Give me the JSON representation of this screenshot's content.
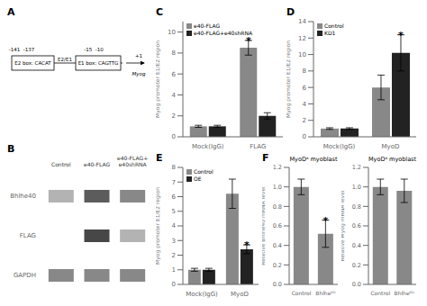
{
  "chart_data": [
    {
      "type": "diagram",
      "annotations": [
        "A",
        "-141  -137",
        "-15  -10",
        "+1",
        "E2 box: CACAT",
        "E1 box: CAGTTG",
        "E2/E1",
        "Myog"
      ]
    },
    {
      "type": "heatmap",
      "annotations": [
        "B"
      ],
      "categories": [
        "Control",
        "e40-FLAG",
        "e40-FLAG+\ne40shRNA"
      ],
      "row_labels": [
        "Bhlhe40",
        "FLAG",
        "GAPDH"
      ],
      "cells": [
        [
          0.35,
          0.75,
          0.55
        ],
        [
          0.0,
          0.85,
          0.35
        ],
        [
          0.55,
          0.55,
          0.55
        ]
      ]
    },
    {
      "type": "bar",
      "annotations": [
        {
          "text": "C"
        },
        {
          "text": "*",
          "category": "FLAG",
          "series": "e40-FLAG"
        }
      ],
      "categories": [
        "Mock(IgG)",
        "FLAG"
      ],
      "series": [
        {
          "name": "e40-FLAG",
          "color": "#888888",
          "values": [
            1.0,
            8.5
          ],
          "errors": [
            0.1,
            0.7
          ]
        },
        {
          "name": "e40-FLAG+e40shRNA",
          "color": "#222222",
          "values": [
            1.0,
            2.0
          ],
          "errors": [
            0.1,
            0.3
          ]
        }
      ],
      "ylabel": "Myog promoter E1/E2 region",
      "ylim": [
        0,
        11
      ],
      "yticks": [
        0,
        2,
        4,
        6,
        8,
        10
      ],
      "legend": "upper left"
    },
    {
      "type": "bar",
      "annotations": [
        {
          "text": "D"
        },
        {
          "text": "*",
          "category": "MyoD",
          "series": "KD1"
        }
      ],
      "categories": [
        "Mock(IgG)",
        "MyoD"
      ],
      "series": [
        {
          "name": "Control",
          "color": "#888888",
          "values": [
            1.0,
            6.0
          ],
          "errors": [
            0.1,
            1.5
          ]
        },
        {
          "name": "KD1",
          "color": "#222222",
          "values": [
            1.0,
            10.2
          ],
          "errors": [
            0.1,
            2.2
          ]
        }
      ],
      "ylabel": "Myog promoter E1/E2 region",
      "ylim": [
        0,
        14
      ],
      "yticks": [
        0,
        2,
        4,
        6,
        8,
        10,
        12,
        14
      ],
      "legend": "upper left"
    },
    {
      "type": "bar",
      "annotations": [
        {
          "text": "E"
        },
        {
          "text": "*",
          "category": "MyoD",
          "series": "OE"
        }
      ],
      "categories": [
        "Mock(IgG)",
        "MyoD"
      ],
      "series": [
        {
          "name": "Control",
          "color": "#888888",
          "values": [
            1.0,
            6.2
          ],
          "errors": [
            0.1,
            1.0
          ]
        },
        {
          "name": "OE",
          "color": "#222222",
          "values": [
            1.0,
            2.4
          ],
          "errors": [
            0.1,
            0.3
          ]
        }
      ],
      "ylabel": "Myog promoter E1/E2 region",
      "ylim": [
        0,
        8
      ],
      "yticks": [
        0,
        1,
        2,
        3,
        4,
        5,
        6,
        7,
        8
      ],
      "legend": "upper left"
    },
    {
      "type": "bar",
      "title": "MyoDᵃ myoblast",
      "annotations": [
        {
          "text": "F"
        },
        {
          "text": "*",
          "category": "Bhlheᴷᴰ"
        }
      ],
      "categories": [
        "Control",
        "Bhlheᴷᴰ"
      ],
      "values": [
        1.0,
        0.52
      ],
      "errors": [
        0.08,
        0.14
      ],
      "color": "#888888",
      "ylabel": "Relative Bhlhe40 mRNA level",
      "ylim": [
        0,
        1.2
      ],
      "yticks": [
        {
          "value": 0,
          "label": "0.0"
        },
        0.2,
        0.4,
        0.6,
        0.8,
        {
          "value": 1.0,
          "label": "1.0"
        },
        1.2
      ]
    },
    {
      "type": "bar",
      "title": "MyoDᵃ myoblast",
      "categories": [
        "Control",
        "Bhlheᴷᴰ"
      ],
      "values": [
        1.0,
        0.96
      ],
      "errors": [
        0.08,
        0.12
      ],
      "color": "#888888",
      "ylabel": "Relative Myog mRNA level",
      "ylim": [
        0,
        1.2
      ],
      "yticks": [
        {
          "value": 0,
          "label": "0.0"
        },
        0.2,
        0.4,
        0.6,
        0.8,
        {
          "value": 1.0,
          "label": "1.0"
        },
        1.2
      ]
    }
  ]
}
